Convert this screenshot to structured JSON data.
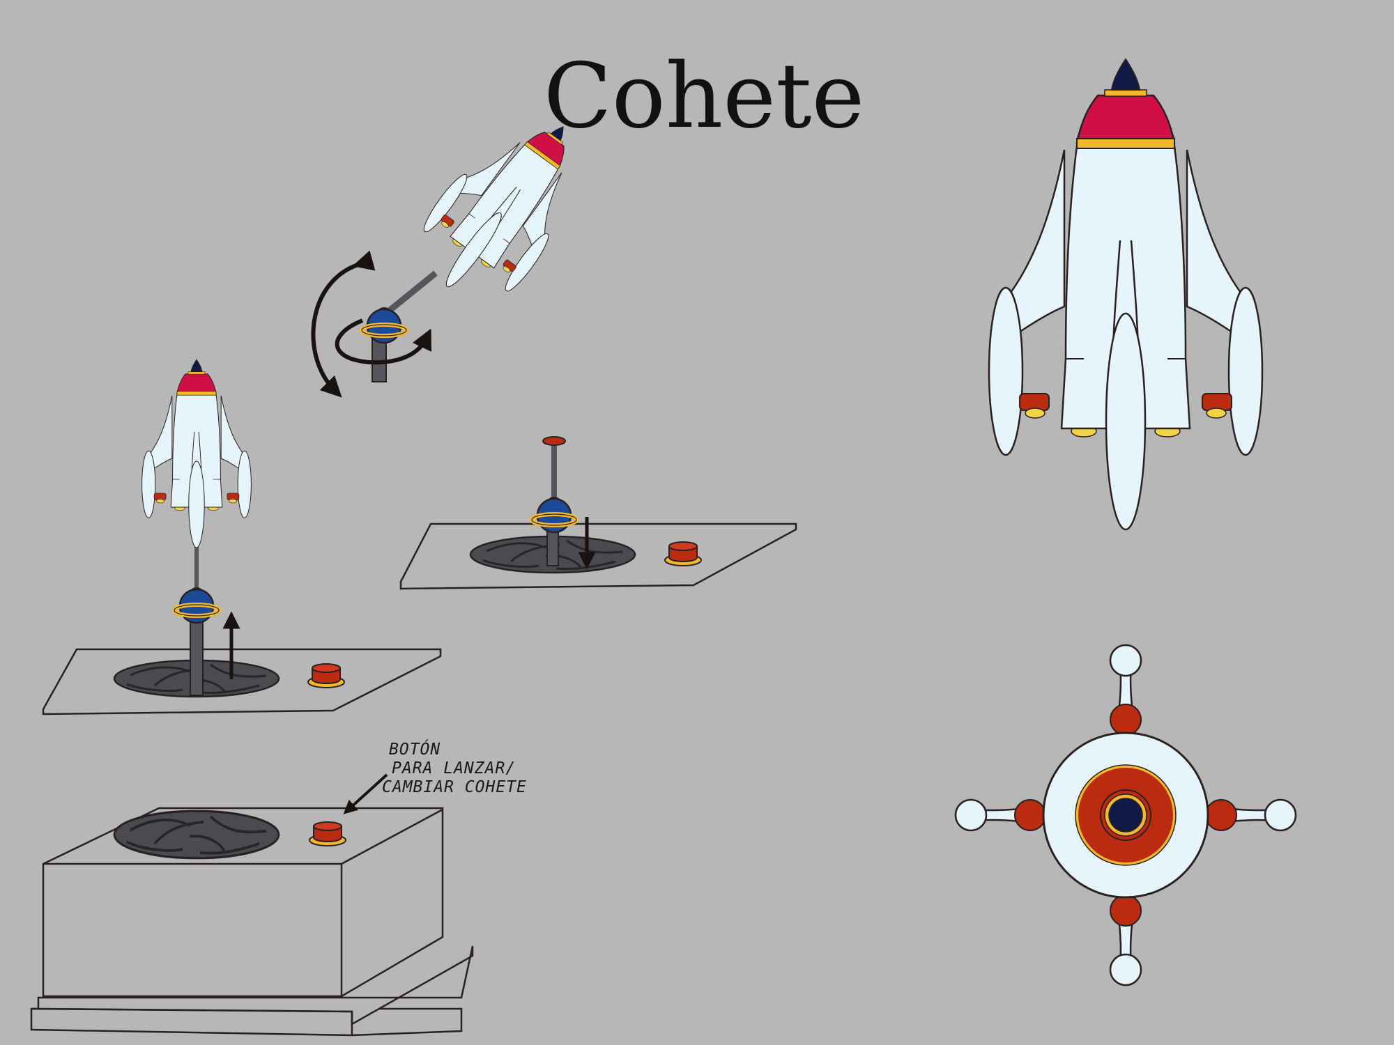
{
  "title": "Cohete",
  "annotation": {
    "line1": "BOTÓN",
    "line2": "PARA LANZAR/",
    "line3": "CAMBIAR COHETE"
  },
  "colors": {
    "background": "#b7b7b7",
    "rocket_body": "#e6f4fb",
    "nose_red": "#cf0f45",
    "nose_tip": "#0f1a45",
    "band_yellow": "#f3b92b",
    "thruster_red": "#bb2b10",
    "joint_blue": "#1a4a98",
    "hole_dark": "#4a4a50",
    "outline": "#2a2020"
  },
  "icons": [
    "rocket-front-icon",
    "rocket-bottom-icon",
    "rotation-arrows-icon",
    "up-arrow-icon",
    "down-arrow-icon",
    "launch-button-icon"
  ]
}
